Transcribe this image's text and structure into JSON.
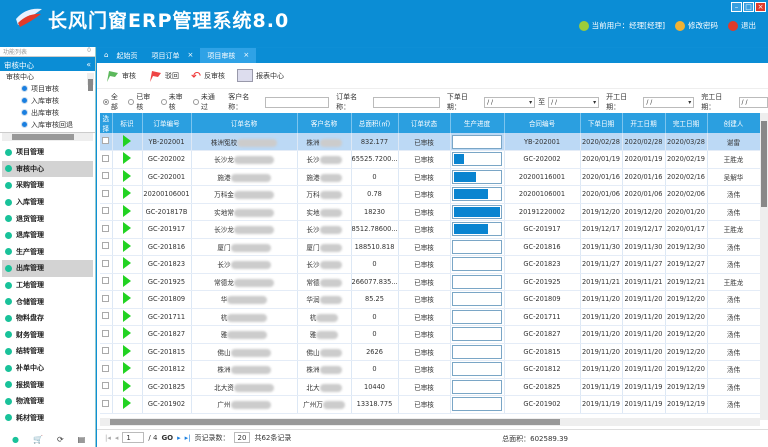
{
  "app": {
    "title": "长风门窗ERP管理系统8.0",
    "user": "当前用户：经理[经理]",
    "change_password": "修改密码",
    "logout": "退出"
  },
  "sidebar": {
    "search_placeholder": "功能列表",
    "search_hint": "0",
    "header": "审核中心",
    "tree": {
      "root": "审核中心",
      "children": [
        "项目审核",
        "入库审核",
        "出库审核",
        "入库审核回退"
      ]
    },
    "menu": [
      {
        "label": "项目管理"
      },
      {
        "label": "审核中心",
        "selected": true
      },
      {
        "label": "采购管理"
      },
      {
        "label": "入库管理"
      },
      {
        "label": "退货管理"
      },
      {
        "label": "退库管理"
      },
      {
        "label": "生产管理"
      },
      {
        "label": "出库管理",
        "selected": true
      },
      {
        "label": "工地管理"
      },
      {
        "label": "仓储管理"
      },
      {
        "label": "物料盘存"
      },
      {
        "label": "财务管理"
      },
      {
        "label": "结转管理"
      },
      {
        "label": "补单中心"
      },
      {
        "label": "报损管理"
      },
      {
        "label": "物流管理"
      },
      {
        "label": "耗材管理"
      }
    ]
  },
  "tabs": [
    {
      "label": "起始页"
    },
    {
      "label": "项目订单",
      "close": "×"
    },
    {
      "label": "项目审核",
      "close": "×",
      "active": true
    }
  ],
  "toolbar": {
    "approve": "审核",
    "reject": "驳回",
    "unapprove": "反审核",
    "report": "报表中心"
  },
  "filter": {
    "radios": [
      "全部",
      "已审核",
      "未审核",
      "未通过"
    ],
    "selected": "全部",
    "customer_label": "客户名称：",
    "order_label": "订单名称：",
    "order_date_label": "下单日期：",
    "to_label": "至",
    "start_date_label": "开工日期：",
    "finish_date_label": "完工日期：",
    "date_placeholder": "/ /"
  },
  "table": {
    "columns": [
      "选择",
      "标识",
      "订单编号",
      "订单名称",
      "客户名称",
      "总面积(㎡)",
      "订单状态",
      "生产进度",
      "合同编号",
      "下单日期",
      "开工日期",
      "完工日期",
      "创建人"
    ],
    "rows": [
      [
        "YB-202001",
        "株洲冤校",
        "株洲",
        "832.177",
        "已审核",
        0,
        "YB-202001",
        "2020/02/28",
        "2020/02/28",
        "2020/03/28",
        "谌雷"
      ],
      [
        "GC-202002",
        "长沙龙",
        "长沙",
        "65525.7200...",
        "已审核",
        25,
        "GC-202002",
        "2020/01/19",
        "2020/01/19",
        "2020/02/19",
        "王胜龙"
      ],
      [
        "GC-202001",
        "施港",
        "施港",
        "0",
        "已审核",
        50,
        "20200116001",
        "2020/01/16",
        "2020/01/16",
        "2020/02/16",
        "吴解华"
      ],
      [
        "20200106001",
        "万科金",
        "万科",
        "0.78",
        "已审核",
        75,
        "20200106001",
        "2020/01/06",
        "2020/01/06",
        "2020/02/06",
        "汤伟"
      ],
      [
        "GC-201817B",
        "实地常",
        "实地",
        "18230",
        "已审核",
        100,
        "20191220002",
        "2019/12/20",
        "2019/12/20",
        "2020/01/20",
        "汤伟"
      ],
      [
        "GC-201917",
        "长沙龙",
        "长沙",
        "8512.78600...",
        "已审核",
        75,
        "GC-201917",
        "2019/12/17",
        "2019/12/17",
        "2020/01/17",
        "王胜龙"
      ],
      [
        "GC-201816",
        "厦门",
        "厦门",
        "188510.818",
        "已审核",
        0,
        "GC-201816",
        "2019/11/30",
        "2019/11/30",
        "2019/12/30",
        "汤伟"
      ],
      [
        "GC-201823",
        "长沙",
        "长沙",
        "0",
        "已审核",
        0,
        "GC-201823",
        "2019/11/27",
        "2019/11/27",
        "2019/12/27",
        "汤伟"
      ],
      [
        "GC-201925",
        "常德龙",
        "常德",
        "266077.835...",
        "已审核",
        0,
        "GC-201925",
        "2019/11/21",
        "2019/11/21",
        "2019/12/21",
        "王胜龙"
      ],
      [
        "GC-201809",
        "华",
        "华润",
        "85.25",
        "已审核",
        0,
        "GC-201809",
        "2019/11/20",
        "2019/11/20",
        "2019/12/20",
        "汤伟"
      ],
      [
        "GC-201711",
        "杭",
        "杭",
        "0",
        "已审核",
        0,
        "GC-201711",
        "2019/11/20",
        "2019/11/20",
        "2019/12/20",
        "汤伟"
      ],
      [
        "GC-201827",
        "雅",
        "雅",
        "0",
        "已审核",
        0,
        "GC-201827",
        "2019/11/20",
        "2019/11/20",
        "2019/12/20",
        "汤伟"
      ],
      [
        "GC-201815",
        "佛山",
        "佛山",
        "2626",
        "已审核",
        0,
        "GC-201815",
        "2019/11/20",
        "2019/11/20",
        "2019/12/20",
        "汤伟"
      ],
      [
        "GC-201812",
        "株洲",
        "株洲",
        "0",
        "已审核",
        0,
        "GC-201812",
        "2019/11/20",
        "2019/11/20",
        "2019/12/20",
        "汤伟"
      ],
      [
        "GC-201825",
        "北大资",
        "北大",
        "10440",
        "已审核",
        0,
        "GC-201825",
        "2019/11/19",
        "2019/11/19",
        "2019/12/19",
        "汤伟"
      ],
      [
        "GC-201902",
        "广州",
        "广州万",
        "13318.775",
        "已审核",
        0,
        "GC-201902",
        "2019/11/19",
        "2019/11/19",
        "2019/12/19",
        "汤伟"
      ]
    ]
  },
  "pager": {
    "page": "1",
    "of": "/ 4",
    "go": "GO",
    "page_size_label": "页记录数：",
    "page_size": "20",
    "total": "共62条记录",
    "total_area": "总面积：602589.39"
  },
  "colors": {
    "header": "#0b8dd5",
    "table_header": "#2b9fe0",
    "progress": "#0a84d0",
    "flag_icon": "#22d322"
  }
}
